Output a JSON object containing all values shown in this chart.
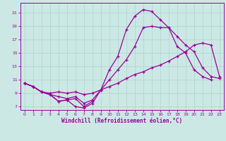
{
  "xlabel": "Windchill (Refroidissement éolien,°C)",
  "bg_color": "#cce8e4",
  "line_color": "#990099",
  "grid_color": "#aad4ce",
  "xlim": [
    -0.5,
    23.5
  ],
  "ylim": [
    6.5,
    22.5
  ],
  "xticks": [
    0,
    1,
    2,
    3,
    4,
    5,
    6,
    7,
    8,
    9,
    10,
    11,
    12,
    13,
    14,
    15,
    16,
    17,
    18,
    19,
    20,
    21,
    22,
    23
  ],
  "yticks": [
    7,
    9,
    11,
    13,
    15,
    17,
    19,
    21
  ],
  "line1_x": [
    0,
    1,
    2,
    3,
    4,
    5,
    6,
    7,
    8,
    9,
    10,
    11,
    12,
    13,
    14,
    15,
    16,
    17,
    18,
    19,
    20,
    21,
    22
  ],
  "line1_y": [
    10.5,
    10.0,
    9.2,
    8.8,
    7.8,
    8.0,
    7.0,
    6.8,
    7.5,
    9.5,
    12.5,
    14.5,
    18.5,
    20.5,
    21.5,
    21.2,
    20.0,
    18.8,
    16.0,
    15.0,
    12.5,
    11.5,
    11.0
  ],
  "line2_x": [
    0,
    1,
    2,
    3,
    4,
    5,
    6,
    7,
    8,
    9,
    10,
    11,
    12,
    13,
    14,
    15,
    16,
    17,
    18,
    19,
    20,
    21,
    22,
    23
  ],
  "line2_y": [
    10.5,
    10.0,
    9.2,
    8.8,
    8.5,
    8.2,
    8.5,
    7.5,
    8.0,
    9.5,
    11.0,
    12.5,
    14.0,
    16.0,
    18.8,
    19.0,
    18.8,
    18.8,
    17.5,
    16.2,
    15.2,
    12.8,
    11.5,
    11.2
  ],
  "line3_x": [
    0,
    1,
    2,
    3,
    4,
    5,
    6,
    7,
    8,
    9,
    10,
    11,
    12,
    13,
    14,
    15,
    16,
    17,
    18,
    19,
    20,
    21,
    22,
    23
  ],
  "line3_y": [
    10.5,
    10.0,
    9.2,
    9.0,
    9.2,
    9.0,
    9.2,
    8.8,
    9.0,
    9.5,
    10.0,
    10.5,
    11.2,
    11.8,
    12.2,
    12.8,
    13.2,
    13.8,
    14.5,
    15.2,
    16.2,
    16.5,
    16.2,
    11.5
  ],
  "line4_x": [
    0,
    1,
    2,
    3,
    4,
    5,
    6,
    7,
    8
  ],
  "line4_y": [
    10.5,
    10.0,
    9.2,
    8.8,
    7.8,
    8.0,
    8.2,
    7.0,
    7.8
  ]
}
